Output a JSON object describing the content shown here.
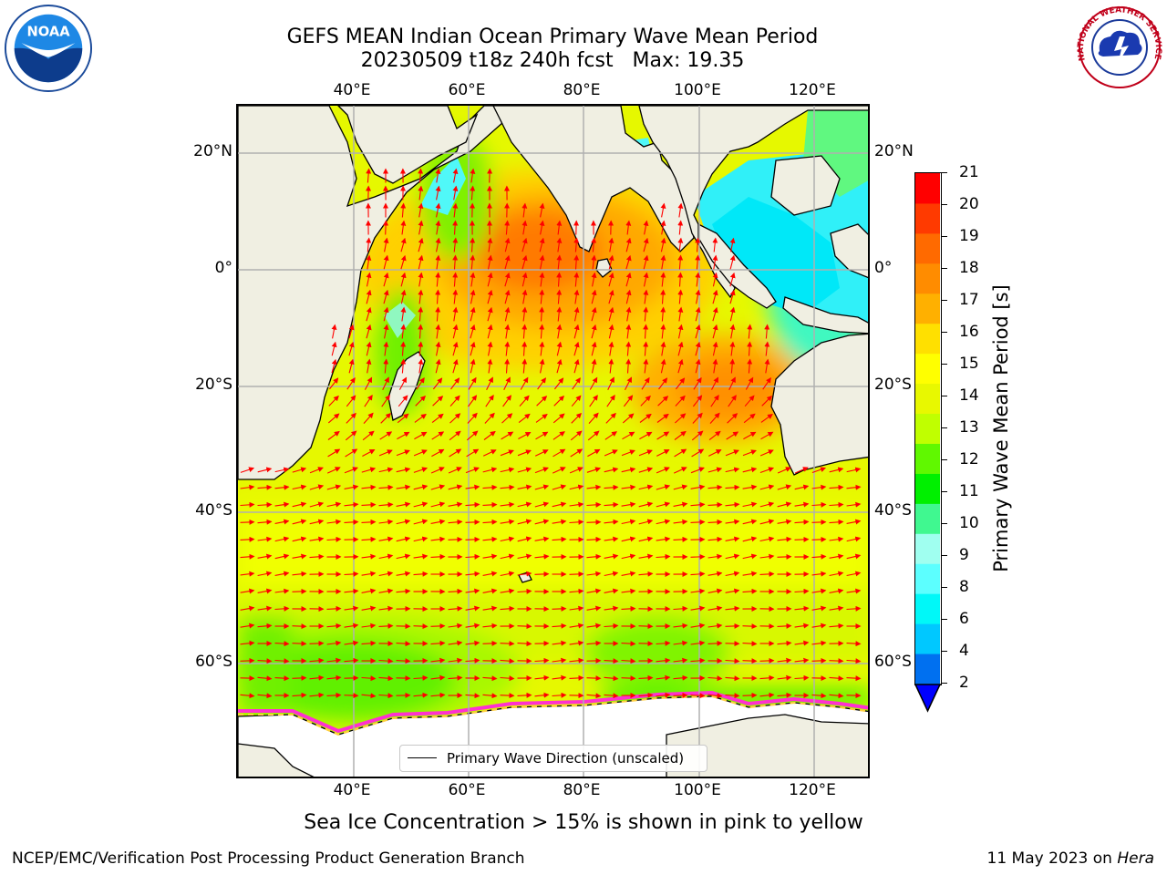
{
  "title": {
    "line1": "GEFS MEAN Indian Ocean Primary Wave Mean Period",
    "line2": "20230509 t18z 240h fcst   Max: 19.35"
  },
  "axes": {
    "lon_ticks": [
      "40°E",
      "60°E",
      "80°E",
      "100°E",
      "120°E"
    ],
    "lat_ticks": [
      "20°N",
      "0°",
      "20°S",
      "40°S",
      "60°S"
    ]
  },
  "legend": {
    "label": "Primary Wave Direction (unscaled)",
    "line_color": "#000000"
  },
  "colorbar": {
    "label": "Primary Wave Mean Period [s]",
    "ticks": [
      "21",
      "20",
      "19",
      "18",
      "17",
      "16",
      "15",
      "14",
      "13",
      "12",
      "11",
      "10",
      "9",
      "8",
      "6",
      "4",
      "2"
    ],
    "colors_low_to_high": [
      "#0070f0",
      "#00c8ff",
      "#00f8f8",
      "#5cffff",
      "#a0fff0",
      "#40f890",
      "#00f000",
      "#60f800",
      "#c0ff00",
      "#e8f800",
      "#ffff00",
      "#ffe000",
      "#ffb000",
      "#ff8c00",
      "#ff6a00",
      "#ff3a00",
      "#ff0000"
    ],
    "under_color": "#0000ff"
  },
  "map": {
    "land_color": "#f0efe2",
    "ice_color": "#ffffff",
    "vector_color": "#ff0000",
    "grid": true
  },
  "footer": {
    "sea_ice_note": "Sea Ice Concentration > 15% is shown in pink to yellow",
    "credit": "NCEP/EMC/Verification Post Processing Product Generation Branch",
    "date_prefix": "11 May 2023 on ",
    "host": "Hera"
  },
  "logos": {
    "left_text": "NOAA",
    "right_text": "NATIONAL WEATHER SERVICE"
  }
}
